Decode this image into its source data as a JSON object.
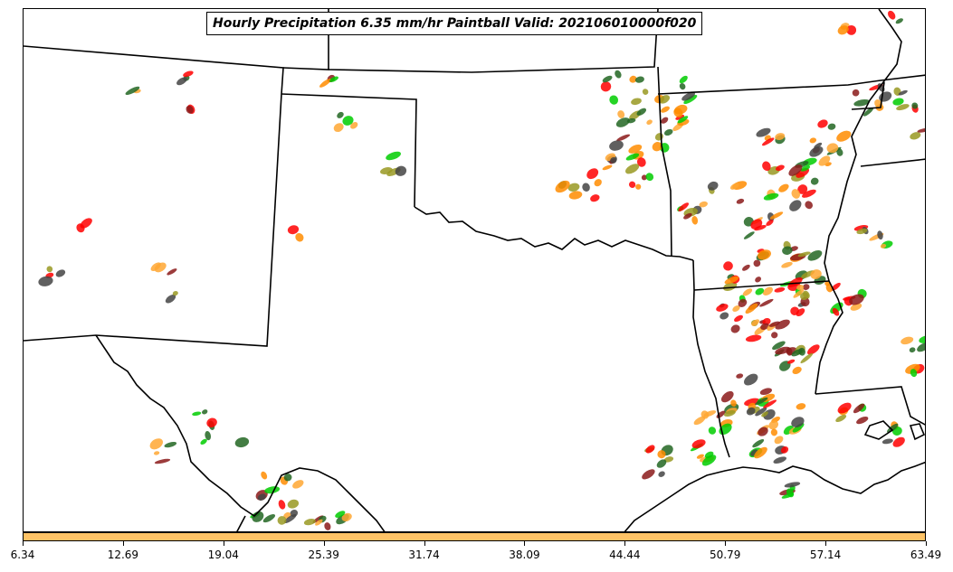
{
  "title": "Hourly Precipitation 6.35 mm/hr Paintball Valid: 202106010000f020",
  "colorbar": {
    "color": "#ffc366",
    "tick_labels": [
      "6.34",
      "12.69",
      "19.04",
      "25.39",
      "31.74",
      "38.09",
      "44.44",
      "50.79",
      "57.14",
      "63.49"
    ]
  },
  "colors": {
    "border": "#000000",
    "member_colors": [
      "#ff8c00",
      "#ff0000",
      "#8b1a1a",
      "#00cc00",
      "#226622",
      "#999922",
      "#444444",
      "#ffa733"
    ]
  },
  "map": {
    "type": "paintball precipitation map",
    "region": "Southern Plains and Lower Mississippi Valley, USA",
    "features": [
      "state borders",
      "coastline",
      "international border",
      "rivers"
    ]
  }
}
